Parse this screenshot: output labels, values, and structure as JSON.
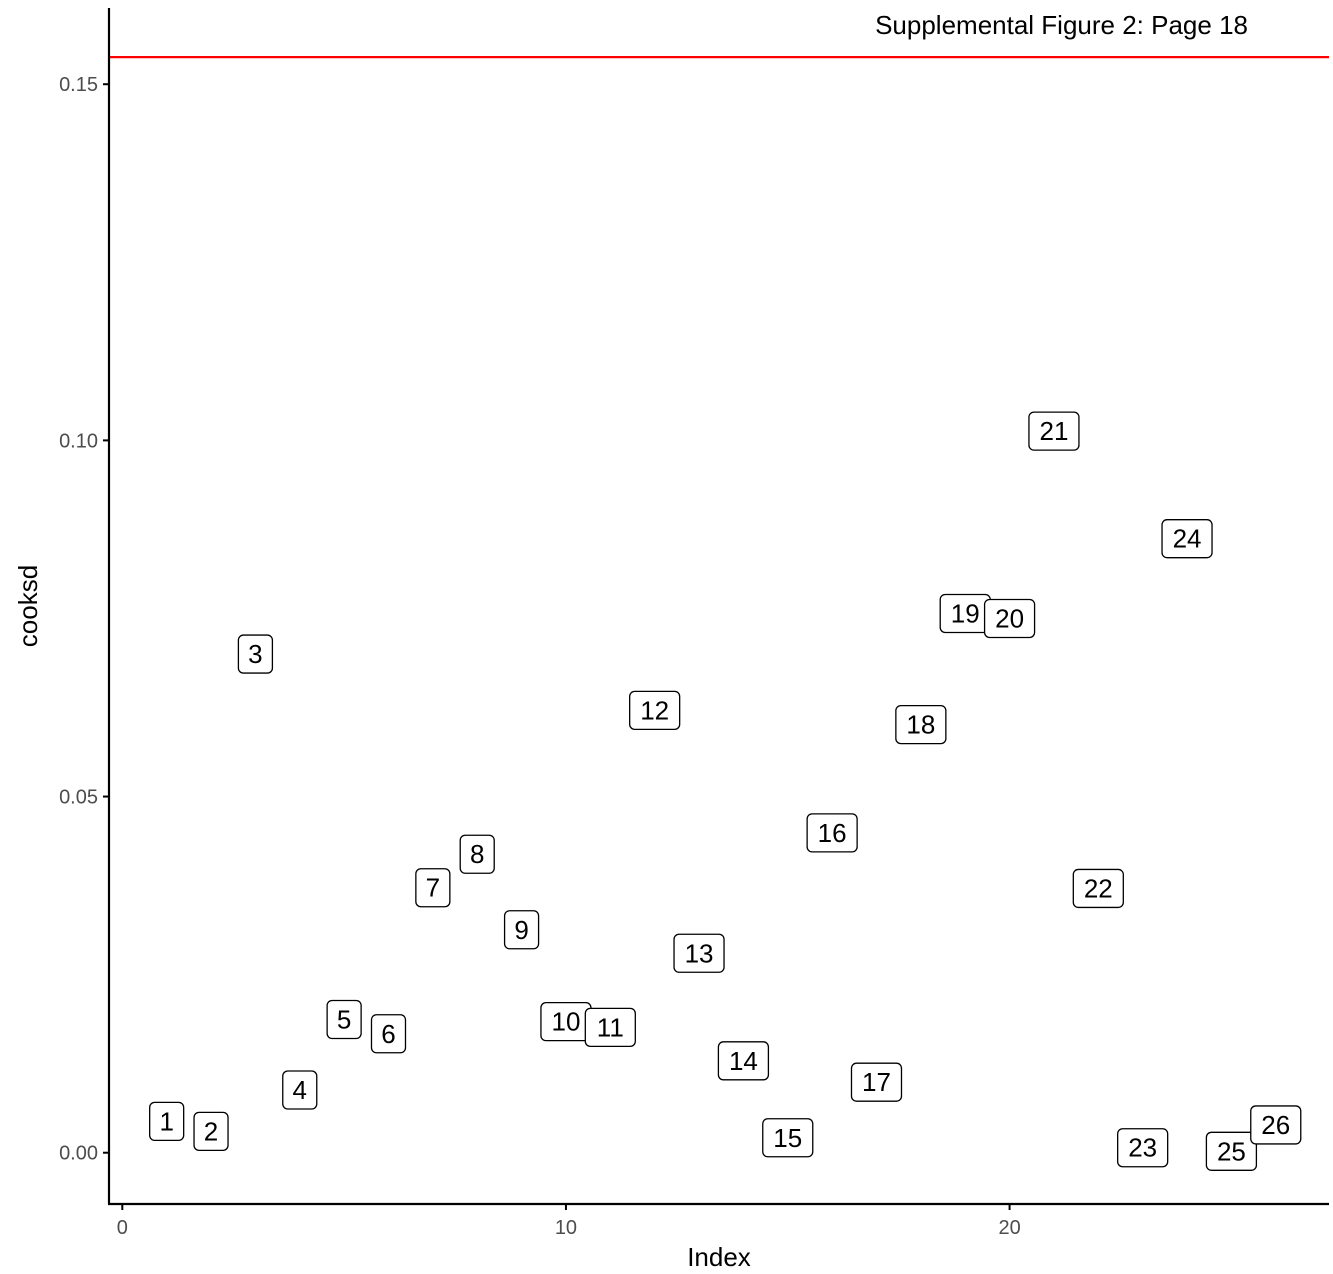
{
  "chart_data": {
    "type": "scatter",
    "annotation": "Supplemental Figure 2: Page 18",
    "xlabel": "Index",
    "ylabel": "cooksd",
    "xlim": [
      -0.3,
      27.2
    ],
    "ylim": [
      -0.0072,
      0.1607
    ],
    "x_ticks": [
      0,
      10,
      20
    ],
    "x_tick_labels": [
      "0",
      "10",
      "20"
    ],
    "y_ticks": [
      0.0,
      0.05,
      0.1,
      0.15
    ],
    "y_tick_labels": [
      "0.00",
      "0.05",
      "0.10",
      "0.15"
    ],
    "threshold": 0.1538,
    "threshold_color": "#ff0000",
    "grid": false,
    "points": [
      {
        "x": 1,
        "y": 0.0044,
        "label": "1"
      },
      {
        "x": 2,
        "y": 0.003,
        "label": "2"
      },
      {
        "x": 3,
        "y": 0.07,
        "label": "3"
      },
      {
        "x": 4,
        "y": 0.0088,
        "label": "4"
      },
      {
        "x": 5,
        "y": 0.0187,
        "label": "5"
      },
      {
        "x": 6,
        "y": 0.0167,
        "label": "6"
      },
      {
        "x": 7,
        "y": 0.0372,
        "label": "7"
      },
      {
        "x": 8,
        "y": 0.0419,
        "label": "8"
      },
      {
        "x": 9,
        "y": 0.0313,
        "label": "9"
      },
      {
        "x": 10,
        "y": 0.0184,
        "label": "10"
      },
      {
        "x": 11,
        "y": 0.0176,
        "label": "11"
      },
      {
        "x": 12,
        "y": 0.0621,
        "label": "12"
      },
      {
        "x": 13,
        "y": 0.028,
        "label": "13"
      },
      {
        "x": 14,
        "y": 0.0129,
        "label": "14"
      },
      {
        "x": 15,
        "y": 0.0021,
        "label": "15"
      },
      {
        "x": 16,
        "y": 0.0449,
        "label": "16"
      },
      {
        "x": 17,
        "y": 0.0099,
        "label": "17"
      },
      {
        "x": 18,
        "y": 0.0601,
        "label": "18"
      },
      {
        "x": 19,
        "y": 0.0757,
        "label": "19"
      },
      {
        "x": 20,
        "y": 0.075,
        "label": "20"
      },
      {
        "x": 21,
        "y": 0.1013,
        "label": "21"
      },
      {
        "x": 22,
        "y": 0.0371,
        "label": "22"
      },
      {
        "x": 23,
        "y": 0.0007,
        "label": "23"
      },
      {
        "x": 24,
        "y": 0.0862,
        "label": "24"
      },
      {
        "x": 25,
        "y": 0.0002,
        "label": "25"
      },
      {
        "x": 26,
        "y": 0.0039,
        "label": "26"
      }
    ]
  }
}
